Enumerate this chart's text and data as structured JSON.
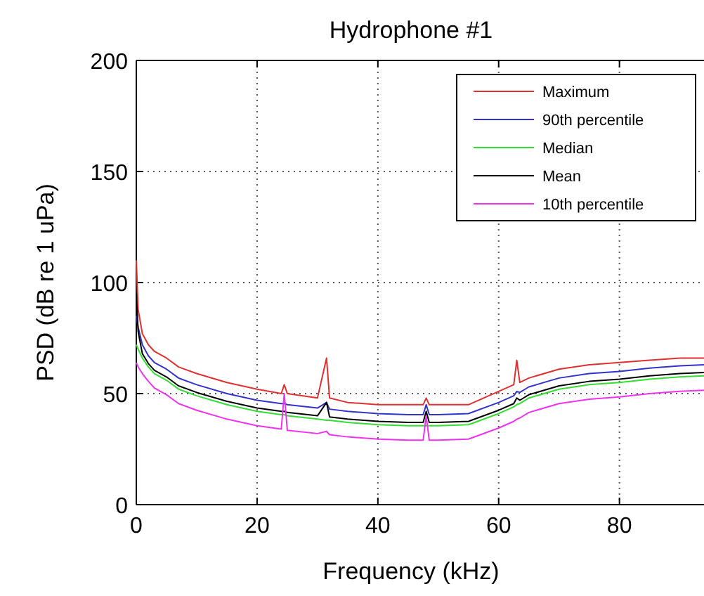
{
  "chart_data": {
    "type": "line",
    "title": "Hydrophone #1",
    "xlabel": "Frequency (kHz)",
    "ylabel": "PSD (dB re 1 uPa)",
    "x": [
      0,
      0.3,
      1,
      2,
      3,
      5,
      7,
      10,
      15,
      20,
      24,
      24.5,
      25,
      30,
      31.5,
      32,
      35,
      40,
      45,
      47.5,
      48,
      48.5,
      50,
      55,
      60,
      62.5,
      63,
      63.5,
      65,
      70,
      75,
      80,
      85,
      90,
      94
    ],
    "series": [
      {
        "name": "Maximum",
        "color": "#e03030",
        "values": [
          110,
          88,
          77,
          72,
          69,
          66,
          62,
          59,
          55,
          52,
          50,
          54,
          50,
          48,
          66,
          48,
          46,
          45,
          45,
          45,
          48,
          45,
          45,
          45,
          51,
          54,
          65,
          55,
          57,
          61,
          63,
          64,
          65,
          66,
          66
        ]
      },
      {
        "name": "90th percentile",
        "color": "#3333cc",
        "values": [
          85,
          80,
          72,
          67,
          64,
          61,
          57,
          54,
          50,
          47,
          45.5,
          45.5,
          45,
          43.5,
          46,
          43,
          42,
          41,
          40.5,
          40.5,
          45,
          40.5,
          40.5,
          41,
          46,
          49,
          51,
          50.5,
          53,
          57,
          59,
          60,
          61.5,
          62.5,
          63
        ]
      },
      {
        "name": "Median",
        "color": "#33dd33",
        "values": [
          72,
          70,
          66,
          62,
          59,
          56,
          52,
          49,
          45,
          42,
          40.5,
          40.5,
          40,
          38.5,
          38,
          38,
          37,
          36,
          35.5,
          35.5,
          35.5,
          35.5,
          35.5,
          36,
          41,
          44,
          45,
          45.5,
          48,
          52,
          54,
          55,
          56.5,
          57.5,
          58
        ]
      },
      {
        "name": "Mean",
        "color": "#000000",
        "values": [
          95,
          78,
          68,
          63.5,
          60.5,
          57.5,
          53.5,
          50.5,
          46.5,
          43.5,
          42,
          42,
          41.5,
          40,
          46,
          39.5,
          38.5,
          37.5,
          37,
          37,
          42,
          37,
          37,
          37.5,
          42.5,
          45.5,
          48,
          47,
          49.5,
          53.5,
          55.5,
          56.5,
          58,
          59,
          59.5
        ]
      },
      {
        "name": "10th percentile",
        "color": "#ee33ee",
        "values": [
          64,
          62,
          59,
          55.5,
          52.5,
          49.5,
          45.5,
          42.5,
          38.5,
          35.5,
          34,
          50,
          33.5,
          32,
          33,
          31.5,
          30.5,
          29.5,
          29,
          29,
          40,
          29,
          29,
          29.5,
          34.5,
          37.5,
          38.5,
          39,
          41.5,
          45.5,
          47.5,
          48.5,
          50,
          51,
          51.5
        ]
      }
    ],
    "xlim": [
      0,
      94
    ],
    "xticks": [
      0,
      20,
      40,
      60,
      80
    ],
    "ylim": [
      0,
      200
    ],
    "yticks": [
      0,
      50,
      100,
      150,
      200
    ],
    "grid": true,
    "legend": "top right",
    "marker": "none",
    "line_style": "solid"
  }
}
